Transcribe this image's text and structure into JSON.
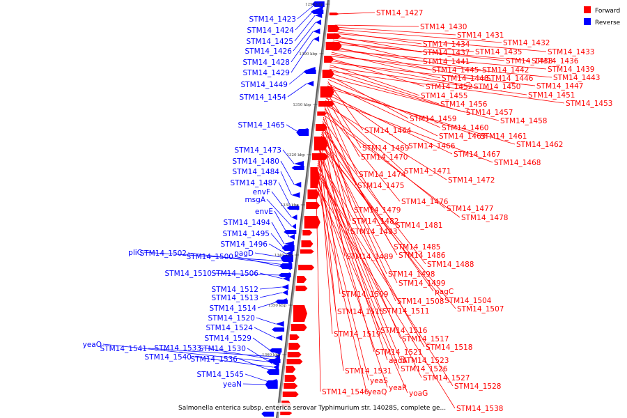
{
  "legend": {
    "forward": "Forward",
    "reverse": "Reverse",
    "forward_color": "#ff0000",
    "reverse_color": "#0000ff"
  },
  "caption": "Salmonella enterica subsp. enterica serovar Typhimurium str. 14028S, complete ge...",
  "axis_ticks": [
    "1290 kbp",
    "1300 kbp",
    "1310 kbp",
    "1320 kbp",
    "1330 kbp",
    "1340 kbp",
    "1350 kbp",
    "1360 kbp"
  ],
  "reverse_genes": [
    "STM14_1423",
    "STM14_1424",
    "STM14_1425",
    "STM14_1426",
    "STM14_1428",
    "STM14_1429",
    "STM14_1449",
    "STM14_1454",
    "STM14_1465",
    "STM14_1473",
    "STM14_1480",
    "STM14_1484",
    "STM14_1487",
    "envF",
    "msgA",
    "envE",
    "STM14_1494",
    "STM14_1495",
    "STM14_1496",
    "pagD",
    "pliC",
    "STM14_1502",
    "STM14_1500",
    "STM14_1510",
    "STM14_1506",
    "STM14_1512",
    "STM14_1513",
    "STM14_1514",
    "STM14_1520",
    "STM14_1524",
    "STM14_1529",
    "yeaO",
    "STM14_1541",
    "STM14_1533",
    "STM14_1530",
    "STM14_1540",
    "STM14_1536",
    "STM14_1545",
    "yeaN"
  ],
  "forward_genes": [
    "STM14_1427",
    "STM14_1430",
    "STM14_1431",
    "STM14_1432",
    "STM14_1434",
    "STM14_1433",
    "STM14_1437",
    "STM14_1435",
    "STM14_1441",
    "STM14_1438",
    "STM14_1436",
    "STM14_1445",
    "STM14_1442",
    "STM14_1439",
    "STM14_1448",
    "STM14_1446",
    "STM14_1443",
    "STM14_1452",
    "STM14_1450",
    "STM14_1447",
    "STM14_1455",
    "STM14_1451",
    "STM14_1456",
    "STM14_1453",
    "STM14_1457",
    "STM14_1459",
    "STM14_1458",
    "STM14_1460",
    "STM14_1464",
    "STM14_1463",
    "STM14_1461",
    "STM14_1462",
    "STM14_1466",
    "STM14_1469",
    "STM14_1467",
    "STM14_1470",
    "STM14_1468",
    "STM14_1471",
    "STM14_1474",
    "STM14_1472",
    "STM14_1475",
    "STM14_1476",
    "STM14_1477",
    "STM14_1479",
    "STM14_1478",
    "STM14_1482",
    "STM14_1481",
    "STM14_1483",
    "STM14_1485",
    "STM14_1486",
    "STM14_1489",
    "STM14_1488",
    "STM14_1498",
    "STM14_1499",
    "pagC",
    "STM14_1509",
    "STM14_1508",
    "STM14_1504",
    "STM14_1507",
    "STM14_1515",
    "STM14_1511",
    "STM14_1516",
    "STM14_1519",
    "STM14_1517",
    "STM14_1518",
    "STM14_1521",
    "aadA",
    "STM14_1523",
    "STM14_1526",
    "STM14_1531",
    "STM14_1527",
    "yeaS",
    "STM14_1528",
    "yeaR",
    "STM14_1546",
    "yeaQ",
    "yoaG",
    "STM14_1538"
  ]
}
